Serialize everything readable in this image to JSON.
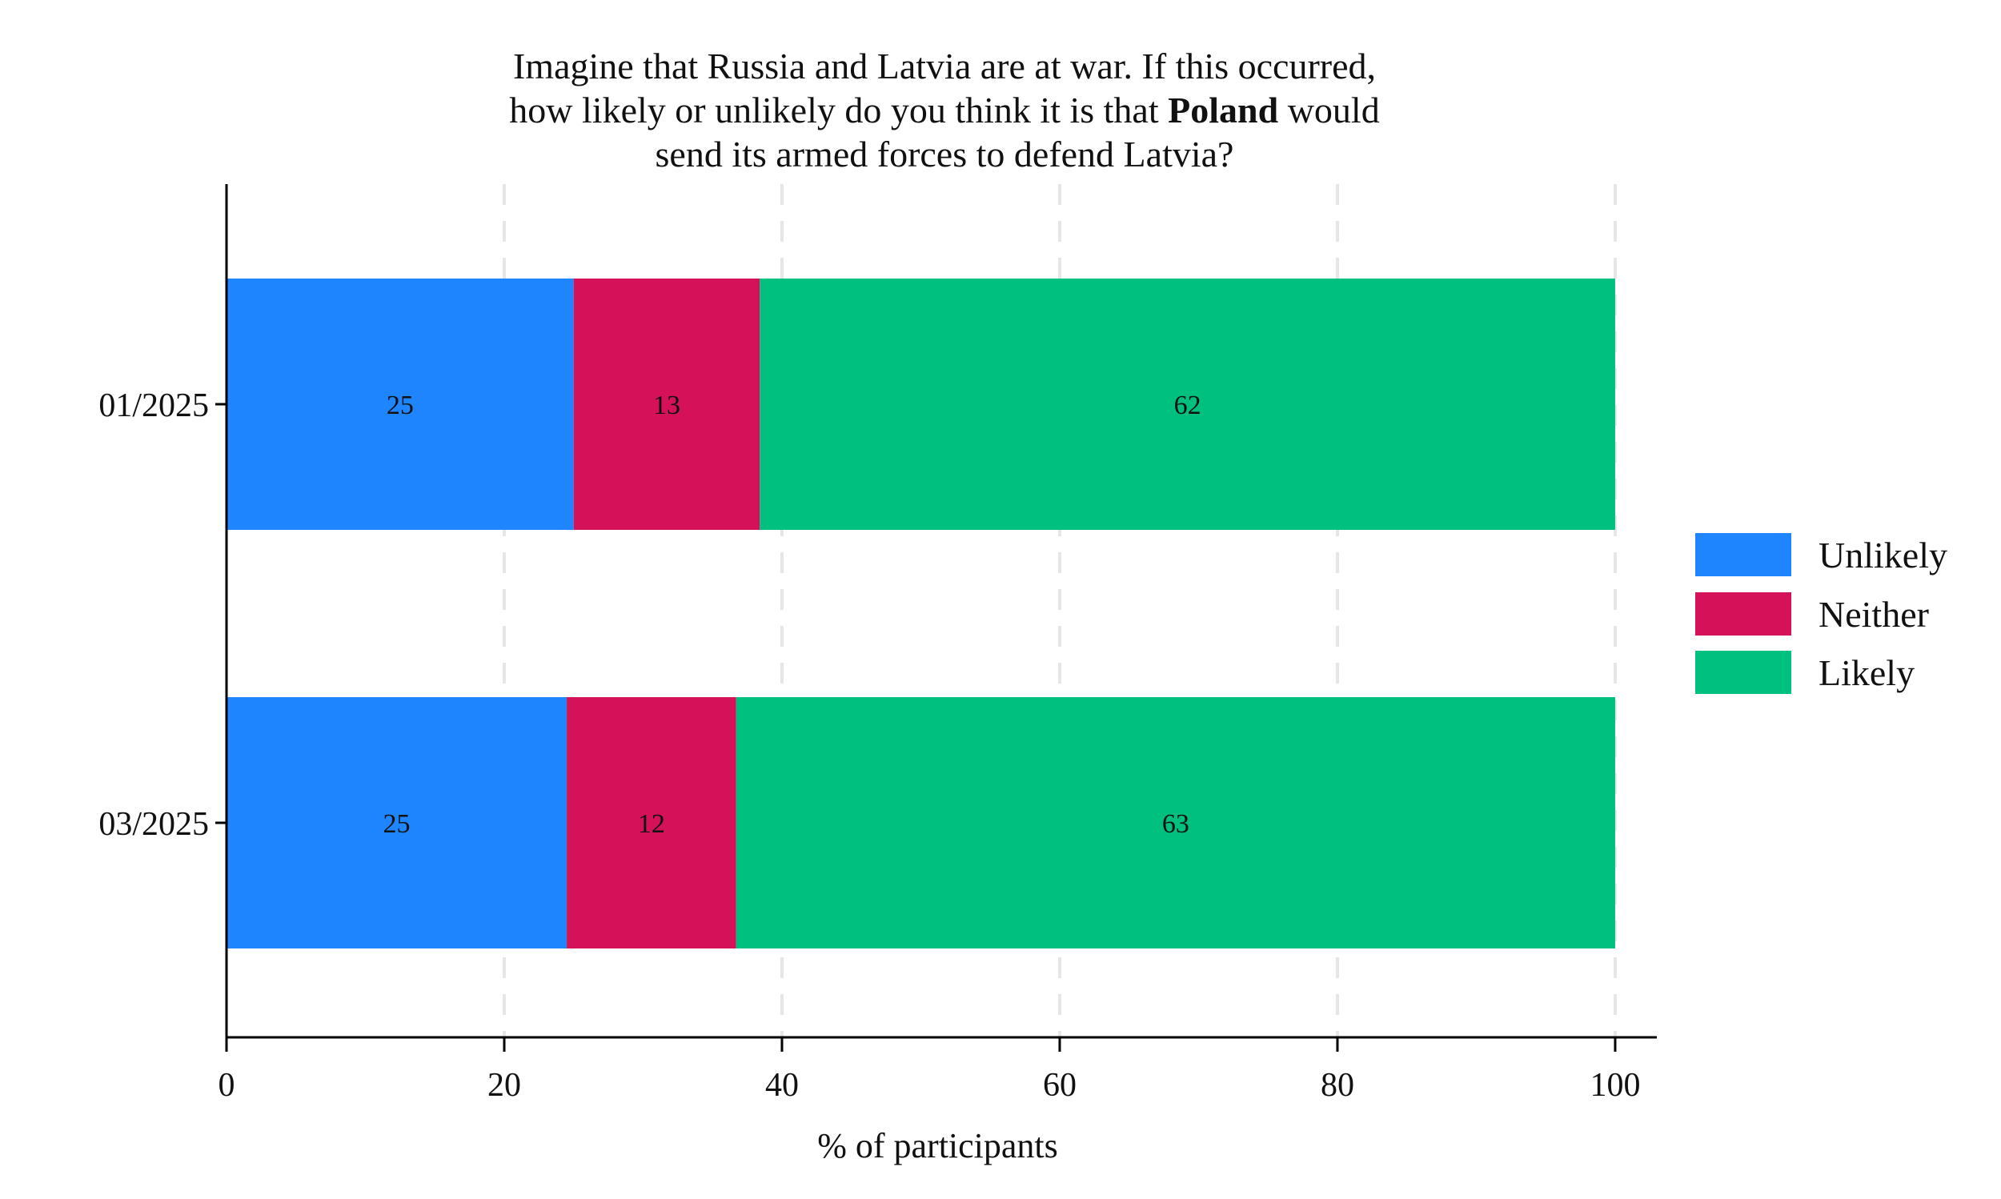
{
  "chart_data": {
    "type": "bar",
    "orientation": "horizontal",
    "stacked": true,
    "title_lines": [
      [
        {
          "text": "Imagine that Russia and Latvia are at war. If this occurred,",
          "bold": false
        }
      ],
      [
        {
          "text": "how likely or unlikely do you think it is that ",
          "bold": false
        },
        {
          "text": "Poland",
          "bold": true
        },
        {
          "text": " would",
          "bold": false
        }
      ],
      [
        {
          "text": "send its armed forces to defend Latvia?",
          "bold": false
        }
      ]
    ],
    "categories": [
      "01/2025",
      "03/2025"
    ],
    "series": [
      {
        "name": "Unlikely",
        "color": "#1E85FF",
        "values": [
          25,
          24.5
        ],
        "labels": [
          "25",
          "25"
        ]
      },
      {
        "name": "Neither",
        "color": "#D41159",
        "values": [
          13.4,
          12.2
        ],
        "labels": [
          "13",
          "12"
        ]
      },
      {
        "name": "Likely",
        "color": "#00C080",
        "values": [
          61.6,
          63.3
        ],
        "labels": [
          "62",
          "63"
        ]
      }
    ],
    "xlabel": "% of participants",
    "ylabel": "",
    "xlim": [
      0,
      103
    ],
    "xticks": [
      0,
      20,
      40,
      60,
      80,
      100
    ],
    "xtick_labels": [
      "0",
      "20",
      "40",
      "60",
      "80",
      "100"
    ],
    "grid": "vertical dashed",
    "legend_position": "right"
  }
}
